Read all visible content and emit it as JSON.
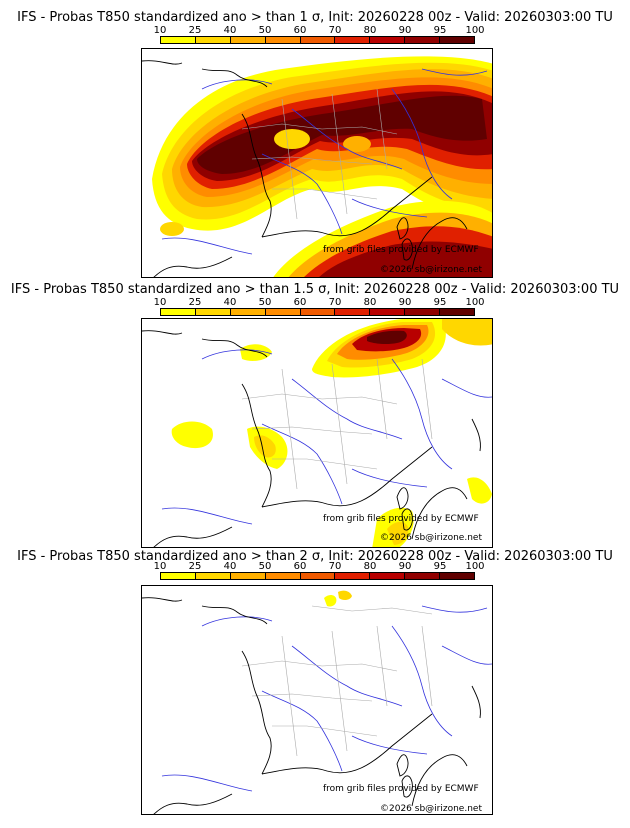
{
  "panels": [
    {
      "title": "IFS - Probas T850  standardized ano > than 1 σ, Init: 20260228 00z - Valid: 20260303:00 TU",
      "credit_source": "from grib files provided by ECMWF",
      "credit_copyright": "©2026 sb@irizone.net"
    },
    {
      "title": "IFS - Probas T850  standardized ano > than 1.5 σ, Init: 20260228 00z - Valid: 20260303:00 TU",
      "credit_source": "from grib files provided by ECMWF",
      "credit_copyright": "©2026 sb@irizone.net"
    },
    {
      "title": "IFS - Probas T850  standardized ano > than 2 σ, Init: 20260228 00z - Valid: 20260303:00 TU",
      "credit_source": "from grib files provided by ECMWF",
      "credit_copyright": "©2026 sb@irizone.net"
    }
  ],
  "legend": {
    "ticks": [
      "10",
      "25",
      "40",
      "50",
      "60",
      "70",
      "80",
      "90",
      "95",
      "100"
    ],
    "colors": [
      "#ffff00",
      "#ffd700",
      "#ffb000",
      "#ff8c00",
      "#f05a00",
      "#e02000",
      "#b80000",
      "#900000",
      "#600000"
    ]
  },
  "colors": {
    "coast": "#000000",
    "rivers": "#3333dd",
    "borders": "#aaaaaa"
  }
}
